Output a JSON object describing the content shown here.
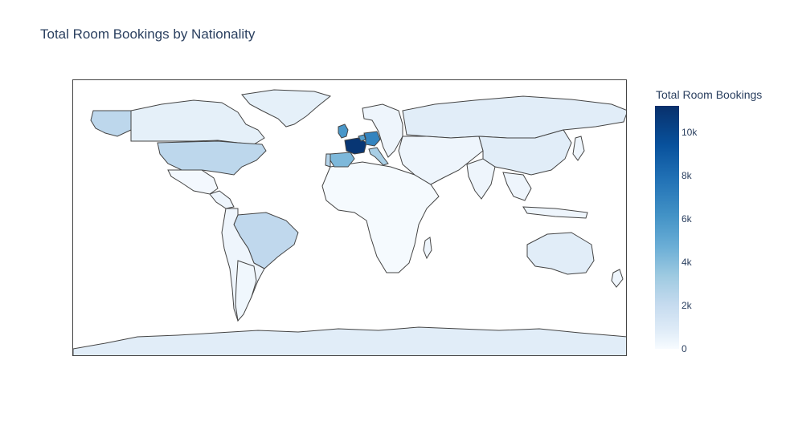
{
  "chart_data": {
    "type": "choropleth",
    "title": "Total Room Bookings by Nationality",
    "colorscale": "Blues",
    "color_range": [
      0,
      11200
    ],
    "colorbar": {
      "title": "Total Room Bookings",
      "ticks": [
        "10k",
        "8k",
        "6k",
        "4k",
        "2k",
        "0"
      ],
      "tick_values": [
        10000,
        8000,
        6000,
        4000,
        2000,
        0
      ]
    },
    "locations": [
      {
        "region": "France",
        "value": 11000
      },
      {
        "region": "Germany",
        "value": 8000
      },
      {
        "region": "United Kingdom",
        "value": 7000
      },
      {
        "region": "Belgium",
        "value": 6500
      },
      {
        "region": "Spain",
        "value": 5000
      },
      {
        "region": "Portugal",
        "value": 3000
      },
      {
        "region": "Italy",
        "value": 3500
      },
      {
        "region": "United States",
        "value": 2600
      },
      {
        "region": "Brazil",
        "value": 2500
      },
      {
        "region": "Canada",
        "value": 800
      },
      {
        "region": "Greenland",
        "value": 800
      },
      {
        "region": "Russia",
        "value": 1000
      },
      {
        "region": "China",
        "value": 1000
      },
      {
        "region": "Australia",
        "value": 1000
      },
      {
        "region": "Antarctica",
        "value": 1000
      },
      {
        "region": "Argentina",
        "value": 300
      },
      {
        "region": "Mexico",
        "value": 200
      },
      {
        "region": "Africa",
        "value": 100
      }
    ]
  }
}
